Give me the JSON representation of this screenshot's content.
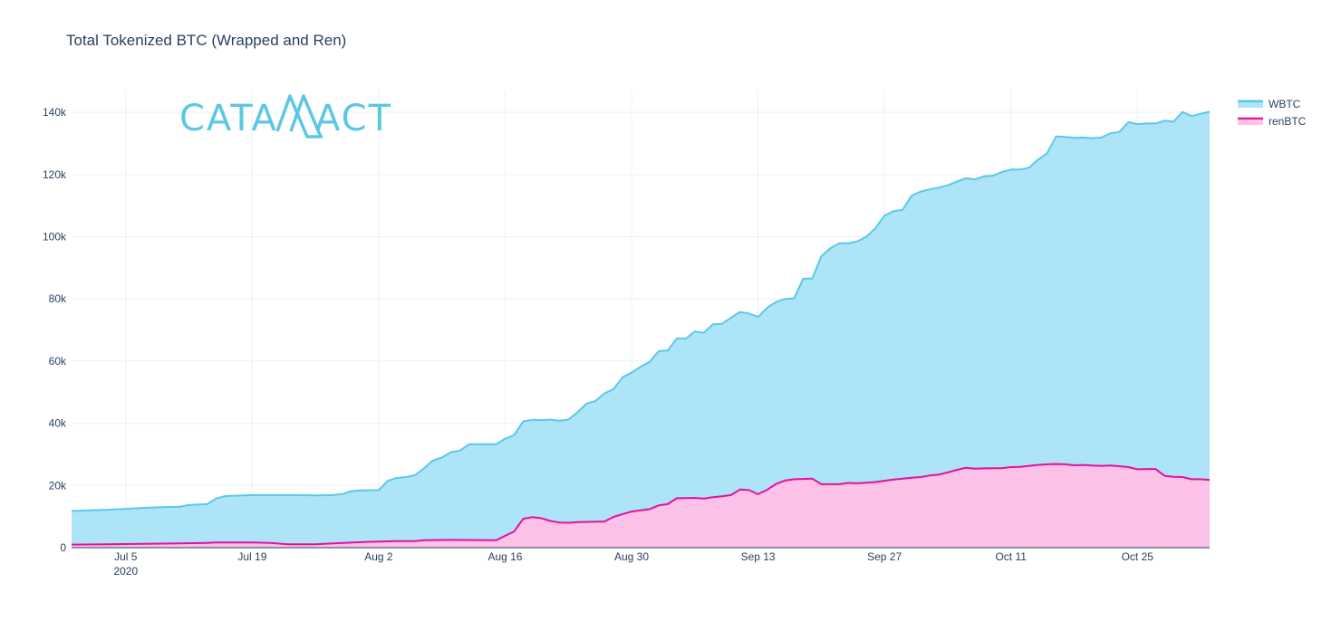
{
  "chart_data": {
    "type": "area",
    "title": "Total Tokenized BTC (Wrapped and Ren)",
    "xlabel": "",
    "ylabel": "",
    "x_start": "2020-06-29",
    "x_end": "2020-11-02",
    "xlim": [
      "2020-06-29",
      "2020-11-02"
    ],
    "ylim": [
      0,
      147000
    ],
    "grid": true,
    "legend_position": "top-right",
    "x_ticks": [
      {
        "date": "2020-07-05",
        "label": "Jul 5",
        "sublabel": "2020"
      },
      {
        "date": "2020-07-19",
        "label": "Jul 19"
      },
      {
        "date": "2020-08-02",
        "label": "Aug 2"
      },
      {
        "date": "2020-08-16",
        "label": "Aug 16"
      },
      {
        "date": "2020-08-30",
        "label": "Aug 30"
      },
      {
        "date": "2020-09-13",
        "label": "Sep 13"
      },
      {
        "date": "2020-09-27",
        "label": "Sep 27"
      },
      {
        "date": "2020-10-11",
        "label": "Oct 11"
      },
      {
        "date": "2020-10-25",
        "label": "Oct 25"
      }
    ],
    "y_ticks": [
      {
        "value": 0,
        "label": "0"
      },
      {
        "value": 20000,
        "label": "20k"
      },
      {
        "value": 40000,
        "label": "40k"
      },
      {
        "value": 60000,
        "label": "60k"
      },
      {
        "value": 80000,
        "label": "80k"
      },
      {
        "value": 100000,
        "label": "100k"
      },
      {
        "value": 120000,
        "label": "120k"
      },
      {
        "value": 140000,
        "label": "140k"
      }
    ],
    "series": [
      {
        "name": "WBTC",
        "line_color": "#5bc8e9",
        "fill_color": "#ade4f7",
        "points": [
          [
            "2020-06-29",
            11800
          ],
          [
            "2020-07-01",
            12000
          ],
          [
            "2020-07-03",
            12200
          ],
          [
            "2020-07-05",
            12500
          ],
          [
            "2020-07-07",
            12800
          ],
          [
            "2020-07-09",
            13000
          ],
          [
            "2020-07-11",
            13200
          ],
          [
            "2020-07-12",
            13700
          ],
          [
            "2020-07-14",
            14000
          ],
          [
            "2020-07-15",
            15800
          ],
          [
            "2020-07-16",
            16600
          ],
          [
            "2020-07-18",
            16800
          ],
          [
            "2020-07-19",
            16900
          ],
          [
            "2020-07-21",
            16900
          ],
          [
            "2020-07-24",
            16900
          ],
          [
            "2020-07-26",
            16800
          ],
          [
            "2020-07-28",
            16900
          ],
          [
            "2020-07-29",
            17300
          ],
          [
            "2020-07-30",
            18200
          ],
          [
            "2020-07-31",
            18400
          ],
          [
            "2020-08-02",
            18500
          ],
          [
            "2020-08-03",
            21500
          ],
          [
            "2020-08-04",
            22400
          ],
          [
            "2020-08-05",
            22700
          ],
          [
            "2020-08-06",
            23300
          ],
          [
            "2020-08-07",
            25500
          ],
          [
            "2020-08-08",
            28000
          ],
          [
            "2020-08-09",
            29000
          ],
          [
            "2020-08-10",
            30700
          ],
          [
            "2020-08-11",
            31200
          ],
          [
            "2020-08-12",
            33200
          ],
          [
            "2020-08-13",
            33300
          ],
          [
            "2020-08-15",
            33300
          ],
          [
            "2020-08-16",
            35000
          ],
          [
            "2020-08-17",
            36200
          ],
          [
            "2020-08-18",
            40600
          ],
          [
            "2020-08-19",
            41100
          ],
          [
            "2020-08-20",
            41000
          ],
          [
            "2020-08-21",
            41200
          ],
          [
            "2020-08-22",
            40800
          ],
          [
            "2020-08-23",
            41200
          ],
          [
            "2020-08-24",
            43500
          ],
          [
            "2020-08-25",
            46300
          ],
          [
            "2020-08-26",
            47200
          ],
          [
            "2020-08-27",
            49600
          ],
          [
            "2020-08-28",
            51000
          ],
          [
            "2020-08-29",
            54800
          ],
          [
            "2020-08-30",
            56300
          ],
          [
            "2020-08-31",
            58200
          ],
          [
            "2020-09-01",
            59800
          ],
          [
            "2020-09-02",
            63200
          ],
          [
            "2020-09-03",
            63400
          ],
          [
            "2020-09-04",
            67300
          ],
          [
            "2020-09-05",
            67200
          ],
          [
            "2020-09-06",
            69500
          ],
          [
            "2020-09-07",
            69100
          ],
          [
            "2020-09-08",
            71800
          ],
          [
            "2020-09-09",
            72000
          ],
          [
            "2020-09-10",
            73900
          ],
          [
            "2020-09-11",
            75800
          ],
          [
            "2020-09-12",
            75300
          ],
          [
            "2020-09-13",
            74200
          ],
          [
            "2020-09-14",
            77100
          ],
          [
            "2020-09-15",
            79000
          ],
          [
            "2020-09-16",
            80000
          ],
          [
            "2020-09-17",
            80200
          ],
          [
            "2020-09-18",
            86500
          ],
          [
            "2020-09-19",
            86500
          ],
          [
            "2020-09-20",
            93700
          ],
          [
            "2020-09-21",
            96300
          ],
          [
            "2020-09-22",
            97900
          ],
          [
            "2020-09-23",
            97900
          ],
          [
            "2020-09-24",
            98500
          ],
          [
            "2020-09-25",
            100000
          ],
          [
            "2020-09-26",
            102700
          ],
          [
            "2020-09-27",
            106800
          ],
          [
            "2020-09-28",
            108200
          ],
          [
            "2020-09-29",
            108600
          ],
          [
            "2020-09-30",
            113200
          ],
          [
            "2020-10-01",
            114500
          ],
          [
            "2020-10-02",
            115200
          ],
          [
            "2020-10-03",
            115800
          ],
          [
            "2020-10-04",
            116500
          ],
          [
            "2020-10-05",
            117700
          ],
          [
            "2020-10-06",
            118800
          ],
          [
            "2020-10-07",
            118400
          ],
          [
            "2020-10-08",
            119400
          ],
          [
            "2020-10-09",
            119600
          ],
          [
            "2020-10-10",
            120800
          ],
          [
            "2020-10-11",
            121600
          ],
          [
            "2020-10-12",
            121600
          ],
          [
            "2020-10-13",
            122200
          ],
          [
            "2020-10-14",
            124800
          ],
          [
            "2020-10-15",
            126800
          ],
          [
            "2020-10-16",
            132200
          ],
          [
            "2020-10-17",
            132100
          ],
          [
            "2020-10-18",
            131800
          ],
          [
            "2020-10-19",
            131900
          ],
          [
            "2020-10-20",
            131700
          ],
          [
            "2020-10-21",
            131900
          ],
          [
            "2020-10-22",
            133200
          ],
          [
            "2020-10-23",
            133700
          ],
          [
            "2020-10-24",
            136800
          ],
          [
            "2020-10-25",
            136200
          ],
          [
            "2020-10-26",
            136400
          ],
          [
            "2020-10-27",
            136400
          ],
          [
            "2020-10-28",
            137300
          ],
          [
            "2020-10-29",
            137000
          ],
          [
            "2020-10-30",
            140100
          ],
          [
            "2020-10-31",
            138800
          ],
          [
            "2020-11-01",
            139500
          ],
          [
            "2020-11-02",
            140200
          ]
        ]
      },
      {
        "name": "renBTC",
        "line_color": "#e2129b",
        "fill_color": "#fbc1e6",
        "points": [
          [
            "2020-06-29",
            1000
          ],
          [
            "2020-07-03",
            1100
          ],
          [
            "2020-07-07",
            1250
          ],
          [
            "2020-07-11",
            1400
          ],
          [
            "2020-07-14",
            1500
          ],
          [
            "2020-07-15",
            1700
          ],
          [
            "2020-07-19",
            1650
          ],
          [
            "2020-07-21",
            1500
          ],
          [
            "2020-07-23",
            1100
          ],
          [
            "2020-07-26",
            1100
          ],
          [
            "2020-07-28",
            1400
          ],
          [
            "2020-08-01",
            1900
          ],
          [
            "2020-08-04",
            2100
          ],
          [
            "2020-08-06",
            2100
          ],
          [
            "2020-08-07",
            2400
          ],
          [
            "2020-08-10",
            2500
          ],
          [
            "2020-08-15",
            2400
          ],
          [
            "2020-08-16",
            3800
          ],
          [
            "2020-08-17",
            5200
          ],
          [
            "2020-08-18",
            9300
          ],
          [
            "2020-08-19",
            9800
          ],
          [
            "2020-08-20",
            9500
          ],
          [
            "2020-08-21",
            8600
          ],
          [
            "2020-08-22",
            8100
          ],
          [
            "2020-08-23",
            8000
          ],
          [
            "2020-08-24",
            8200
          ],
          [
            "2020-08-27",
            8400
          ],
          [
            "2020-08-28",
            9900
          ],
          [
            "2020-08-29",
            10800
          ],
          [
            "2020-08-30",
            11600
          ],
          [
            "2020-08-31",
            12000
          ],
          [
            "2020-09-01",
            12400
          ],
          [
            "2020-09-02",
            13600
          ],
          [
            "2020-09-03",
            14000
          ],
          [
            "2020-09-04",
            15900
          ],
          [
            "2020-09-06",
            16000
          ],
          [
            "2020-09-07",
            15800
          ],
          [
            "2020-09-08",
            16200
          ],
          [
            "2020-09-09",
            16500
          ],
          [
            "2020-09-10",
            16900
          ],
          [
            "2020-09-11",
            18700
          ],
          [
            "2020-09-12",
            18500
          ],
          [
            "2020-09-13",
            17200
          ],
          [
            "2020-09-14",
            18600
          ],
          [
            "2020-09-15",
            20500
          ],
          [
            "2020-09-16",
            21600
          ],
          [
            "2020-09-17",
            22000
          ],
          [
            "2020-09-18",
            22100
          ],
          [
            "2020-09-19",
            22200
          ],
          [
            "2020-09-20",
            20400
          ],
          [
            "2020-09-22",
            20400
          ],
          [
            "2020-09-23",
            20800
          ],
          [
            "2020-09-24",
            20700
          ],
          [
            "2020-09-25",
            20900
          ],
          [
            "2020-09-26",
            21100
          ],
          [
            "2020-09-27",
            21500
          ],
          [
            "2020-09-28",
            21900
          ],
          [
            "2020-09-29",
            22200
          ],
          [
            "2020-09-30",
            22500
          ],
          [
            "2020-10-01",
            22700
          ],
          [
            "2020-10-02",
            23200
          ],
          [
            "2020-10-03",
            23500
          ],
          [
            "2020-10-04",
            24200
          ],
          [
            "2020-10-05",
            25000
          ],
          [
            "2020-10-06",
            25700
          ],
          [
            "2020-10-07",
            25400
          ],
          [
            "2020-10-08",
            25500
          ],
          [
            "2020-10-10",
            25600
          ],
          [
            "2020-10-11",
            25900
          ],
          [
            "2020-10-12",
            26000
          ],
          [
            "2020-10-13",
            26300
          ],
          [
            "2020-10-14",
            26600
          ],
          [
            "2020-10-15",
            26800
          ],
          [
            "2020-10-16",
            26900
          ],
          [
            "2020-10-17",
            26800
          ],
          [
            "2020-10-18",
            26500
          ],
          [
            "2020-10-19",
            26600
          ],
          [
            "2020-10-20",
            26400
          ],
          [
            "2020-10-21",
            26300
          ],
          [
            "2020-10-22",
            26400
          ],
          [
            "2020-10-23",
            26200
          ],
          [
            "2020-10-24",
            25900
          ],
          [
            "2020-10-25",
            25200
          ],
          [
            "2020-10-27",
            25300
          ],
          [
            "2020-10-28",
            23100
          ],
          [
            "2020-10-29",
            22800
          ],
          [
            "2020-10-30",
            22700
          ],
          [
            "2020-10-31",
            22000
          ],
          [
            "2020-11-01",
            22000
          ],
          [
            "2020-11-02",
            21800
          ]
        ]
      }
    ]
  },
  "logo": {
    "text_left": "CATA",
    "text_right": "ACT",
    "color": "#5bc8e3"
  },
  "colors": {
    "grid": "#ebf0f8",
    "axis_text": "#2a3f5f",
    "baseline": "#2a3f5f"
  }
}
